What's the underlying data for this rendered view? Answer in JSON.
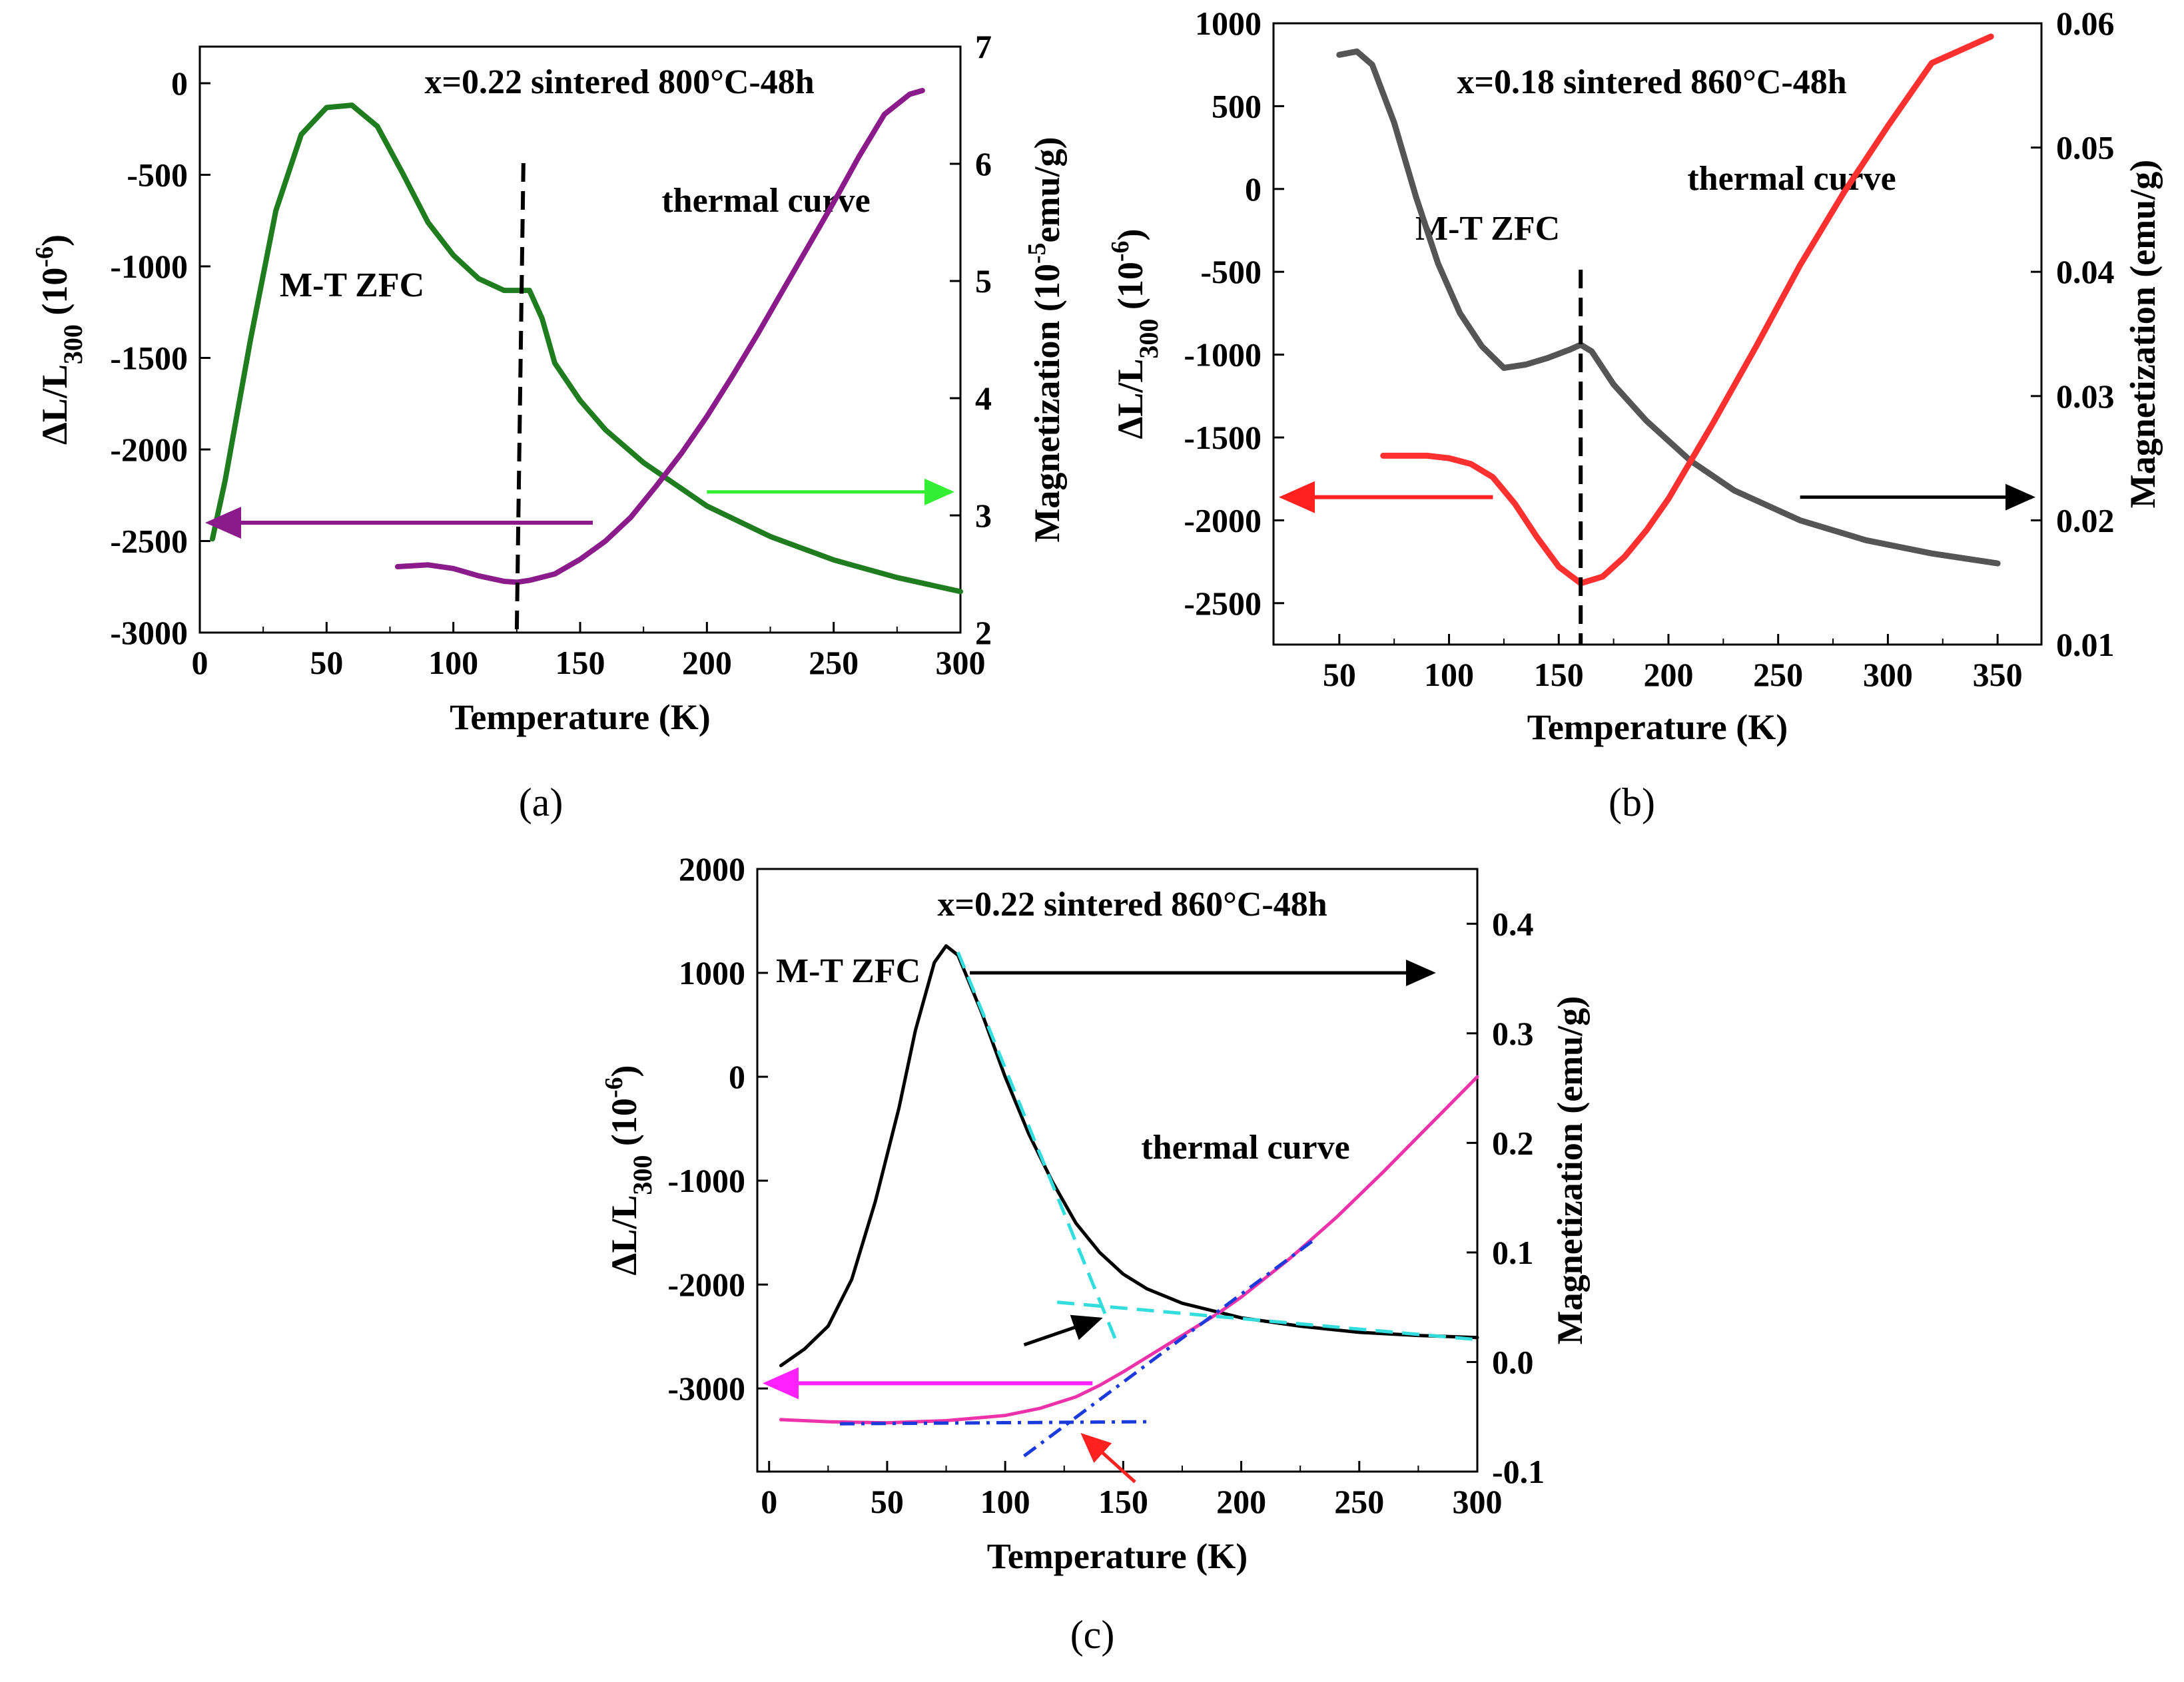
{
  "chart_data": [
    {
      "panel": "a",
      "type": "line",
      "caption": "(a)",
      "title": "x=0.22 sintered 800°C-48h",
      "xlabel": "Temperature (K)",
      "ylabel_left": "ΔL/L300 (10-6)",
      "ylabel_left_parts": {
        "main": "ΔL/L",
        "sub": "300",
        "rest": " (10",
        "sup": "-6",
        "end": ")"
      },
      "ylabel_right": "Magnetization (10-5emu/g)",
      "ylabel_right_parts": {
        "main": "Magnetization (10",
        "sup": "-5",
        "end": "emu/g)"
      },
      "xlim": [
        0,
        300
      ],
      "ylim_left": [
        -3000,
        200
      ],
      "ylim_right": [
        2,
        7
      ],
      "xticks": [
        0,
        50,
        100,
        150,
        200,
        250,
        300
      ],
      "yticks_left": [
        -3000,
        -2500,
        -2000,
        -1500,
        -1000,
        -500,
        0
      ],
      "yticks_right": [
        2,
        3,
        4,
        5,
        6,
        7
      ],
      "annotations": [
        "M-T ZFC",
        "thermal curve"
      ],
      "colors": {
        "mt": "#1f7d1f",
        "thermal": "#8b1a8b",
        "arrow_left": "#8b1a8b",
        "arrow_right": "#33ee33",
        "dashed": "#000000"
      },
      "series": [
        {
          "name": "M-T ZFC",
          "axis": "right",
          "x": [
            5,
            10,
            20,
            30,
            40,
            50,
            60,
            70,
            80,
            90,
            100,
            110,
            120,
            125,
            130,
            135,
            140,
            150,
            160,
            175,
            200,
            225,
            250,
            275,
            300
          ],
          "y": [
            2.8,
            3.3,
            4.5,
            5.6,
            6.25,
            6.48,
            6.5,
            6.32,
            5.92,
            5.5,
            5.22,
            5.02,
            4.92,
            4.92,
            4.92,
            4.68,
            4.3,
            3.98,
            3.73,
            3.45,
            3.08,
            2.82,
            2.62,
            2.47,
            2.35
          ]
        },
        {
          "name": "thermal curve",
          "axis": "left",
          "x": [
            78,
            90,
            100,
            110,
            120,
            125,
            130,
            140,
            150,
            160,
            170,
            180,
            190,
            200,
            210,
            220,
            230,
            240,
            250,
            260,
            270,
            280,
            285
          ],
          "y": [
            -2640,
            -2630,
            -2650,
            -2690,
            -2720,
            -2725,
            -2715,
            -2680,
            -2600,
            -2500,
            -2370,
            -2200,
            -2020,
            -1820,
            -1600,
            -1370,
            -1130,
            -890,
            -650,
            -400,
            -170,
            -60,
            -40
          ]
        }
      ],
      "vline_x": 125,
      "arrow_left": {
        "x_from": 155,
        "x_to": 0,
        "y_left": -2400
      },
      "arrow_right": {
        "x_from": 200,
        "x_to": 300,
        "y_right": 3.2
      }
    },
    {
      "panel": "b",
      "type": "line",
      "caption": "(b)",
      "title": "x=0.18  sintered 860°C-48h",
      "xlabel": "Temperature (K)",
      "ylabel_left": "ΔL/L300 (10-6)",
      "ylabel_left_parts": {
        "main": "ΔL/L",
        "sub": "300",
        "rest": " (10",
        "sup": "-6",
        "end": ")"
      },
      "ylabel_right": "Magnetization (emu/g)",
      "ylabel_right_parts": {
        "main": "Magnetization (emu/g)"
      },
      "xlim": [
        20,
        370
      ],
      "ylim_left": [
        -2750,
        1000
      ],
      "ylim_right": [
        0.01,
        0.06
      ],
      "xticks": [
        50,
        100,
        150,
        200,
        250,
        300,
        350
      ],
      "yticks_left": [
        -2500,
        -2000,
        -1500,
        -1000,
        -500,
        0,
        500,
        1000
      ],
      "yticks_right": [
        0.01,
        0.02,
        0.03,
        0.04,
        0.05,
        0.06
      ],
      "annotations": [
        "M-T ZFC",
        "thermal curve"
      ],
      "colors": {
        "mt": "#555555",
        "thermal": "#ff3030",
        "arrow_left": "#ff2020",
        "arrow_right": "#000000",
        "dashed": "#000000"
      },
      "series": [
        {
          "name": "M-T ZFC",
          "axis": "left",
          "x": [
            50,
            58,
            65,
            75,
            85,
            95,
            105,
            115,
            125,
            135,
            145,
            155,
            160,
            165,
            175,
            190,
            210,
            230,
            260,
            290,
            320,
            350
          ],
          "y": [
            810,
            830,
            750,
            400,
            -50,
            -450,
            -750,
            -950,
            -1080,
            -1060,
            -1020,
            -970,
            -940,
            -980,
            -1180,
            -1400,
            -1640,
            -1820,
            -2000,
            -2120,
            -2200,
            -2260
          ]
        },
        {
          "name": "thermal curve",
          "axis": "left",
          "x": [
            70,
            90,
            100,
            110,
            120,
            130,
            140,
            150,
            160,
            170,
            180,
            190,
            200,
            220,
            240,
            260,
            280,
            300,
            320,
            347
          ],
          "y": [
            -1610,
            -1610,
            -1625,
            -1660,
            -1740,
            -1900,
            -2100,
            -2280,
            -2380,
            -2340,
            -2220,
            -2060,
            -1870,
            -1420,
            -950,
            -460,
            -20,
            380,
            760,
            920
          ]
        }
      ],
      "vline_x": 160,
      "arrow_left": {
        "x_from": 120,
        "x_to": 20,
        "y_left": -1860
      },
      "arrow_right": {
        "x_from": 260,
        "x_to": 370,
        "y_left": -1860
      }
    },
    {
      "panel": "c",
      "type": "line",
      "caption": "(c)",
      "title": "x=0.22 sintered 860°C-48h",
      "xlabel": "Temperature (K)",
      "ylabel_left": "ΔL/L300 (10-6)",
      "ylabel_left_parts": {
        "main": "ΔL/L",
        "sub": "300",
        "rest": " (10",
        "sup": "-6",
        "end": ")"
      },
      "ylabel_right": "Magnetization (emu/g)",
      "ylabel_right_parts": {
        "main": "Magnetization (emu/g)"
      },
      "xlim": [
        -5,
        300
      ],
      "ylim_left": [
        -3800,
        2000
      ],
      "ylim_right": [
        -0.1,
        0.45
      ],
      "xticks": [
        0,
        50,
        100,
        150,
        200,
        250,
        300
      ],
      "yticks_left": [
        -3000,
        -2000,
        -1000,
        0,
        1000,
        2000
      ],
      "yticks_right": [
        -0.1,
        0.0,
        0.1,
        0.2,
        0.3,
        0.4
      ],
      "annotations": [
        "M-T ZFC",
        "thermal curve"
      ],
      "colors": {
        "mt": "#000000",
        "thermal": "#ee33aa",
        "tangent_mt": "#33dddd",
        "tangent_thermal": "#1a3adb",
        "arrow_left": "#ff22ff",
        "arrow_right": "#000000",
        "arrow_small_black": "#000000",
        "arrow_small_red": "#ff2020"
      },
      "series": [
        {
          "name": "M-T ZFC",
          "axis": "left",
          "x": [
            5,
            15,
            25,
            35,
            45,
            55,
            62,
            70,
            75,
            80,
            90,
            100,
            110,
            120,
            130,
            140,
            150,
            160,
            175,
            200,
            225,
            250,
            275,
            300
          ],
          "y": [
            -2780,
            -2620,
            -2400,
            -1950,
            -1200,
            -300,
            450,
            1100,
            1260,
            1170,
            620,
            0,
            -550,
            -1010,
            -1410,
            -1690,
            -1900,
            -2040,
            -2180,
            -2320,
            -2400,
            -2460,
            -2490,
            -2510
          ]
        },
        {
          "name": "thermal curve",
          "axis": "left",
          "x": [
            5,
            25,
            50,
            75,
            100,
            115,
            130,
            140,
            150,
            160,
            175,
            190,
            200,
            220,
            240,
            260,
            280,
            300
          ],
          "y": [
            -3300,
            -3320,
            -3330,
            -3310,
            -3260,
            -3190,
            -3080,
            -2970,
            -2840,
            -2700,
            -2490,
            -2280,
            -2120,
            -1760,
            -1360,
            -920,
            -460,
            0
          ]
        }
      ],
      "tangents": [
        {
          "color": "cyan",
          "x": [
            80,
            148
          ],
          "y": [
            1200,
            -2600
          ]
        },
        {
          "color": "cyan",
          "x": [
            122,
            300
          ],
          "y": [
            -2170,
            -2530
          ]
        },
        {
          "color": "blue",
          "x": [
            30,
            162
          ],
          "y": [
            -3340,
            -3320
          ]
        },
        {
          "color": "blue",
          "x": [
            108,
            232
          ],
          "y": [
            -3650,
            -1550
          ]
        }
      ],
      "arrow_left": {
        "x_from": 137,
        "x_to": -5,
        "y_left": -2950
      },
      "arrow_right": {
        "x_from": 85,
        "x_to": 285,
        "y_left": 1000
      },
      "arrow_black_small": {
        "x_from": 108,
        "y_from": -2580,
        "x_to": 140,
        "y_to": -2330
      },
      "arrow_red_small": {
        "x_from": 155,
        "y_from": -3900,
        "x_to": 133,
        "y_to": -3450
      }
    }
  ]
}
